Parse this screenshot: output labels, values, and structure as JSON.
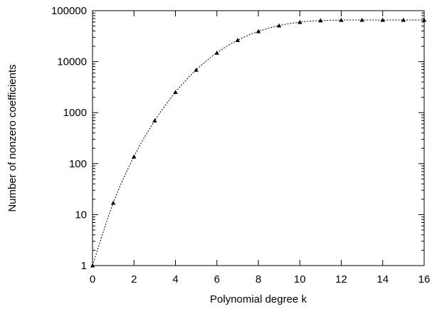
{
  "chart_data": {
    "type": "line",
    "xlabel": "Polynomial degree k",
    "ylabel": "Number of nonzero coefficients",
    "xlim": [
      0,
      16
    ],
    "ylim": [
      1,
      100000
    ],
    "y_scale": "log",
    "grid": false,
    "x_ticks": [
      "0",
      "2",
      "4",
      "6",
      "8",
      "10",
      "12",
      "14",
      "16"
    ],
    "y_ticks": [
      "1",
      "10",
      "100",
      "1000",
      "10000",
      "100000"
    ],
    "series": [
      {
        "marker": "triangle",
        "line_style": "dotted",
        "x": [
          0,
          1,
          2,
          3,
          4,
          5,
          6,
          7,
          8,
          9,
          10,
          11,
          12,
          13,
          14,
          15,
          16
        ],
        "y": [
          1,
          17,
          137,
          697,
          2517,
          6885,
          14893,
          26333,
          39203,
          51073,
          59541,
          64009,
          65489,
          65649,
          65665,
          65665,
          65665
        ]
      }
    ]
  }
}
